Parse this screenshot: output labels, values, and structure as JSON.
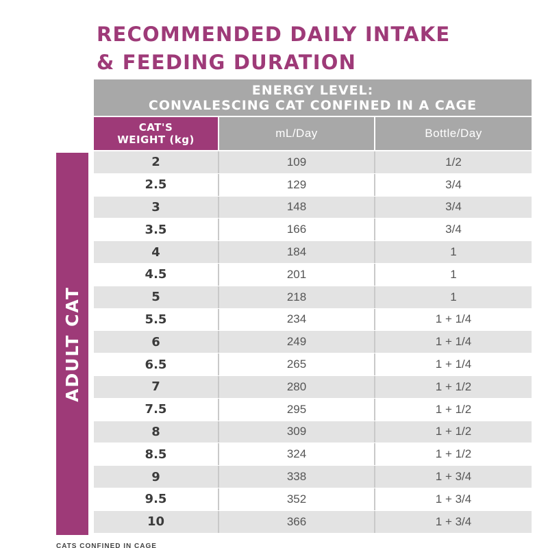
{
  "title": {
    "line1": "RECOMMENDED DAILY INTAKE",
    "line2": "& FEEDING DURATION"
  },
  "side_label": "ADULT CAT",
  "table": {
    "energy_header": {
      "line1": "ENERGY LEVEL:",
      "line2": "CONVALESCING CAT CONFINED IN A CAGE"
    },
    "columns": {
      "weight_line1": "CAT'S",
      "weight_line2": "WEIGHT (kg)",
      "ml": "mL/Day",
      "bottle": "Bottle/Day"
    },
    "rows": [
      {
        "weight": "2",
        "ml": "109",
        "bottle": "1/2"
      },
      {
        "weight": "2.5",
        "ml": "129",
        "bottle": "3/4"
      },
      {
        "weight": "3",
        "ml": "148",
        "bottle": "3/4"
      },
      {
        "weight": "3.5",
        "ml": "166",
        "bottle": "3/4"
      },
      {
        "weight": "4",
        "ml": "184",
        "bottle": "1"
      },
      {
        "weight": "4.5",
        "ml": "201",
        "bottle": "1"
      },
      {
        "weight": "5",
        "ml": "218",
        "bottle": "1"
      },
      {
        "weight": "5.5",
        "ml": "234",
        "bottle": "1 + 1/4"
      },
      {
        "weight": "6",
        "ml": "249",
        "bottle": "1 + 1/4"
      },
      {
        "weight": "6.5",
        "ml": "265",
        "bottle": "1 + 1/4"
      },
      {
        "weight": "7",
        "ml": "280",
        "bottle": "1 + 1/2"
      },
      {
        "weight": "7.5",
        "ml": "295",
        "bottle": "1 + 1/2"
      },
      {
        "weight": "8",
        "ml": "309",
        "bottle": "1 + 1/2"
      },
      {
        "weight": "8.5",
        "ml": "324",
        "bottle": "1 + 1/2"
      },
      {
        "weight": "9",
        "ml": "338",
        "bottle": "1 + 3/4"
      },
      {
        "weight": "9.5",
        "ml": "352",
        "bottle": "1 + 3/4"
      },
      {
        "weight": "10",
        "ml": "366",
        "bottle": "1 + 3/4"
      }
    ]
  },
  "footnote": "CATS CONFINED IN CAGE",
  "colors": {
    "accent": "#9e3a78",
    "header_gray": "#a8a8a8",
    "row_alt": "#e3e3e3"
  }
}
